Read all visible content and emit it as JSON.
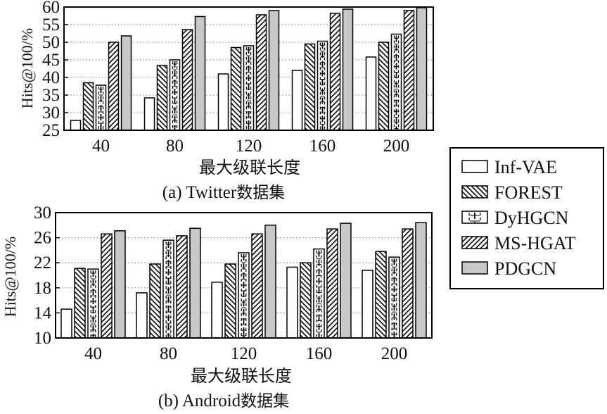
{
  "chart_data": [
    {
      "type": "bar",
      "caption_prefix": "(a) Twitter",
      "caption_suffix": "数据集",
      "xlabel": "最大级联长度",
      "ylabel": "Hits@100/%",
      "categories": [
        "40",
        "80",
        "120",
        "160",
        "200"
      ],
      "ylim": [
        25,
        60
      ],
      "yticks": [
        25,
        30,
        35,
        40,
        45,
        50,
        55,
        60
      ],
      "grid": "horizontal dotted",
      "series": [
        {
          "name": "Inf-VAE",
          "values": [
            27.8,
            34.2,
            41.0,
            42.0,
            45.8
          ]
        },
        {
          "name": "FOREST",
          "values": [
            38.5,
            43.4,
            48.5,
            49.5,
            50.0
          ]
        },
        {
          "name": "DyHGCN",
          "values": [
            37.8,
            45.0,
            49.0,
            50.3,
            52.3
          ]
        },
        {
          "name": "MS-HGAT",
          "values": [
            50.0,
            53.6,
            57.8,
            58.2,
            59.0
          ]
        },
        {
          "name": "PDGCN",
          "values": [
            51.8,
            57.3,
            59.0,
            59.4,
            59.8
          ]
        }
      ]
    },
    {
      "type": "bar",
      "caption_prefix": "(b) Android",
      "caption_suffix": "数据集",
      "xlabel": "最大级联长度",
      "ylabel": "Hits@100/%",
      "categories": [
        "40",
        "80",
        "120",
        "160",
        "200"
      ],
      "ylim": [
        10,
        30
      ],
      "yticks": [
        10,
        14,
        18,
        22,
        26,
        30
      ],
      "grid": "horizontal dotted",
      "series": [
        {
          "name": "Inf-VAE",
          "values": [
            14.6,
            17.2,
            18.9,
            21.3,
            20.8
          ]
        },
        {
          "name": "FOREST",
          "values": [
            21.1,
            21.8,
            21.8,
            22.0,
            23.8
          ]
        },
        {
          "name": "DyHGCN",
          "values": [
            21.0,
            25.6,
            23.6,
            24.2,
            22.9
          ]
        },
        {
          "name": "MS-HGAT",
          "values": [
            26.6,
            26.3,
            26.6,
            27.4,
            27.4
          ]
        },
        {
          "name": "PDGCN",
          "values": [
            27.1,
            27.5,
            28.0,
            28.3,
            28.4
          ]
        }
      ]
    }
  ],
  "legend": {
    "placement": "right",
    "items": [
      {
        "label": "Inf-VAE",
        "pattern": "empty"
      },
      {
        "label": "FOREST",
        "pattern": "back-diagonal"
      },
      {
        "label": "DyHGCN",
        "pattern": "vertical-dashed"
      },
      {
        "label": "MS-HGAT",
        "pattern": "forward-diagonal"
      },
      {
        "label": "PDGCN",
        "pattern": "gray"
      }
    ]
  },
  "colors": {
    "bar_edge": "#000000",
    "bar_fill": "#ffffff",
    "pdgcn_fill": "#c8c8c8",
    "grid": "#777777"
  }
}
